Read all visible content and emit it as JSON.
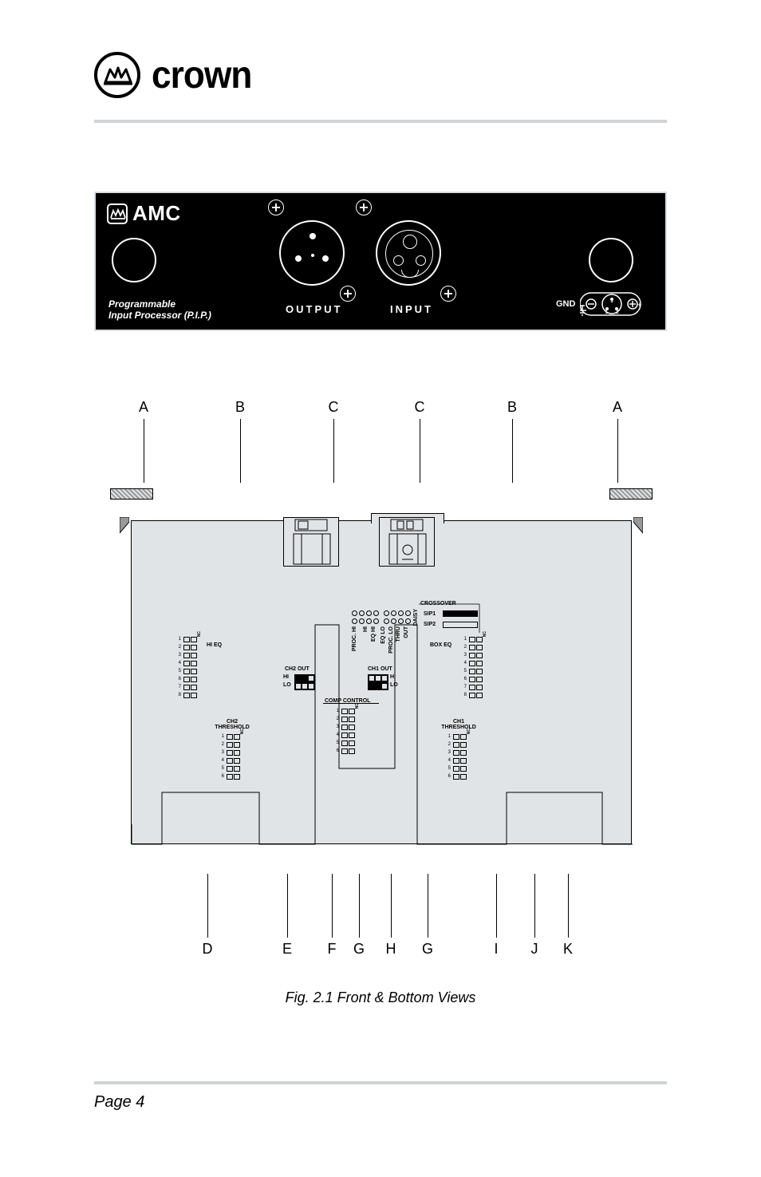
{
  "brand": "crown",
  "panel": {
    "amc": "AMC",
    "pip_line1": "Programmable",
    "pip_line2": "Input Processor (P.I.P.)",
    "output": "OUTPUT",
    "input": "INPUT",
    "gnd": "GND",
    "pin1": "1",
    "pin2": "2",
    "pin3": "3",
    "minus": "−",
    "plus": "+"
  },
  "refs_top": [
    "A",
    "B",
    "C",
    "C",
    "B",
    "A"
  ],
  "refs_bottom": [
    "D",
    "E",
    "F",
    "G",
    "H",
    "G",
    "I",
    "J",
    "K"
  ],
  "refs_top_x": [
    34,
    155,
    272,
    380,
    496,
    628
  ],
  "refs_bottom_x": [
    114,
    214,
    270,
    304,
    344,
    390,
    476,
    524,
    566
  ],
  "board": {
    "crossover": "CROSSOVER",
    "sip1": "SIP1",
    "sip2": "SIP2",
    "hi_eq": "HI EQ",
    "box_eq": "BOX EQ",
    "ch1_out": "CH1 OUT",
    "ch2_out": "CH2 OUT",
    "hi": "HI",
    "lo": "LO",
    "comp_control": "COMP CONTROL",
    "ch1_thr": "CH1\nTHRESHOLD",
    "ch2_thr": "CH2\nTHRESHOLD",
    "daisy": "DAISY",
    "out": "OUT",
    "thru": "THRU",
    "eq_hi": "EQ HI",
    "eq_lo": "EQ LO",
    "proc_hi": "PROC. HI",
    "proc_lo": "PROC. LO",
    "nc": "NC"
  },
  "caption": "Fig. 2.1  Front & Bottom Views",
  "page": "Page 4",
  "colors": {
    "panel_bg": "#000000",
    "board_bg": "#e1e4e6",
    "rule": "#cfd4d8"
  }
}
